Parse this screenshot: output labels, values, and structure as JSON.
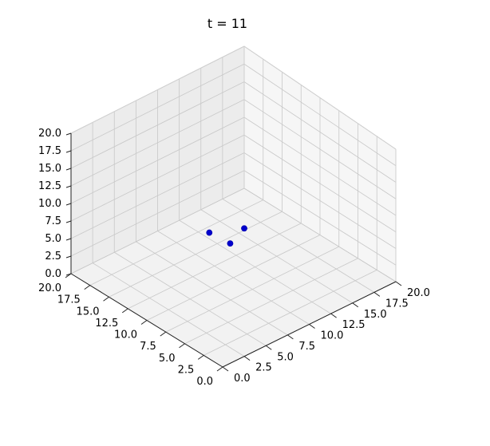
{
  "chart_data": {
    "type": "scatter",
    "projection": "3d",
    "title": "t =  11",
    "xlim": [
      0,
      20
    ],
    "ylim": [
      0,
      20
    ],
    "zlim": [
      0,
      20
    ],
    "x_ticks": [
      "0.0",
      "2.5",
      "5.0",
      "7.5",
      "10.0",
      "12.5",
      "15.0",
      "17.5",
      "20.0"
    ],
    "y_ticks": [
      "0.0",
      "2.5",
      "5.0",
      "7.5",
      "10.0",
      "12.5",
      "15.0",
      "17.5",
      "20.0"
    ],
    "z_ticks": [
      "0.0",
      "2.5",
      "5.0",
      "7.5",
      "10.0",
      "12.5",
      "15.0",
      "17.5",
      "20.0"
    ],
    "grid": true,
    "marker_color": "#0000cc",
    "points": [
      {
        "x": 5.6,
        "y": 4.9,
        "z": 1.0
      },
      {
        "x": 9.0,
        "y": 9.5,
        "z": 4.0
      },
      {
        "x": 12.3,
        "y": 14.8,
        "z": 11.3
      }
    ]
  }
}
